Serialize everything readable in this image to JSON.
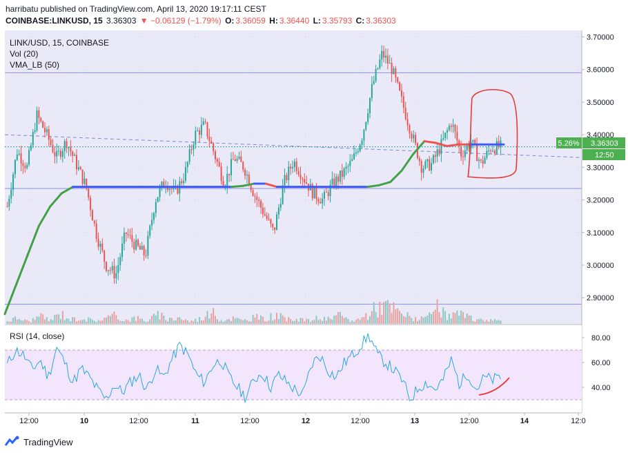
{
  "header": {
    "line1": "harribatu published on TradingView.com, April 13, 2020 19:17:11 CEST",
    "symbol": "COINBASE:LINKUSD, 15",
    "last": "3.36303",
    "change": "▼ −0.06129 (−1.79%)",
    "o_label": "O:",
    "o_value": "3.36059",
    "h_label": "H:",
    "h_value": "3.36440",
    "l_label": "L:",
    "l_value": "3.35793",
    "c_label": "C:",
    "c_value": "3.36303"
  },
  "legend": {
    "title": "LINK/USD, 15, COINBASE",
    "vol": "Vol (20)",
    "vma": "VMA_LB (50)"
  },
  "price_axis": {
    "ticks": [
      "3.70000",
      "3.60000",
      "3.50000",
      "3.40000",
      "3.30000",
      "3.20000",
      "3.10000",
      "3.00000",
      "2.90000"
    ],
    "percent_badge": "5.26%",
    "price_badge": "3.36303",
    "countdown_badge": "12:50"
  },
  "rsi": {
    "label": "RSI (14, close)",
    "ticks": [
      "80.00",
      "60.00",
      "40.00"
    ]
  },
  "time_axis": [
    "12:00",
    "10",
    "12:00",
    "11",
    "12:00",
    "12",
    "12:00",
    "13",
    "12:00",
    "14",
    "12:0"
  ],
  "footer": {
    "brand": "TradingView"
  },
  "colors": {
    "up": "#26a69a",
    "down": "#ef5350",
    "vma_up": "#43a047",
    "vma_flat": "#3d5afe",
    "vma_down": "#ef5350",
    "rsi": "#29a8e0",
    "annotation": "#e53935",
    "pane_bg": "#e9e9f7"
  },
  "chart_data": {
    "type": "candlestick",
    "timeframe": "15",
    "price_range": [
      2.82,
      3.72
    ],
    "horizontal_levels": [
      3.59,
      3.235,
      2.88
    ],
    "trendline": {
      "from": 3.4,
      "to": 3.33
    },
    "last_price": 3.36303,
    "price_path": [
      3.18,
      3.35,
      3.3,
      3.46,
      3.4,
      3.33,
      3.38,
      3.31,
      3.24,
      3.1,
      3.0,
      2.97,
      3.1,
      3.06,
      3.03,
      3.2,
      3.26,
      3.22,
      3.28,
      3.4,
      3.43,
      3.34,
      3.25,
      3.33,
      3.3,
      3.22,
      3.16,
      3.1,
      3.25,
      3.32,
      3.27,
      3.22,
      3.2,
      3.25,
      3.28,
      3.32,
      3.4,
      3.55,
      3.65,
      3.6,
      3.5,
      3.4,
      3.3,
      3.31,
      3.37,
      3.44,
      3.34,
      3.38,
      3.31,
      3.36,
      3.363
    ],
    "vma_path": [
      2.85,
      2.94,
      3.03,
      3.12,
      3.18,
      3.22,
      3.24,
      3.24,
      3.24,
      3.24,
      3.24,
      3.24,
      3.24,
      3.24,
      3.24,
      3.24,
      3.24,
      3.24,
      3.24,
      3.24,
      3.24,
      3.243,
      3.25,
      3.25,
      3.24,
      3.24,
      3.24,
      3.24,
      3.24,
      3.24,
      3.24,
      3.24,
      3.24,
      3.245,
      3.255,
      3.29,
      3.34,
      3.38,
      3.375,
      3.365,
      3.37,
      3.37,
      3.37,
      3.37,
      3.37
    ],
    "rsi_range": [
      20,
      90
    ],
    "rsi_levels": [
      70,
      30
    ],
    "rsi_path": [
      58,
      70,
      66,
      54,
      62,
      48,
      72,
      60,
      44,
      55,
      48,
      38,
      30,
      42,
      36,
      44,
      50,
      38,
      55,
      48,
      62,
      74,
      66,
      50,
      44,
      58,
      62,
      48,
      40,
      32,
      46,
      52,
      40,
      50,
      44,
      38,
      34,
      58,
      66,
      54,
      48,
      60,
      66,
      74,
      82,
      66,
      60,
      54,
      46,
      30,
      40,
      44,
      38,
      46,
      62,
      42,
      52,
      38,
      48,
      46,
      48
    ],
    "volume_path": [
      4,
      8,
      3,
      10,
      5,
      14,
      6,
      9,
      4,
      7,
      11,
      5,
      8,
      4,
      12,
      6,
      9,
      3,
      7,
      16,
      5,
      8,
      4,
      10,
      6,
      13,
      5,
      9,
      4,
      8,
      6,
      11,
      4,
      7,
      18,
      26,
      20,
      12,
      8,
      6,
      22,
      10,
      14,
      8,
      5,
      6,
      4
    ]
  }
}
